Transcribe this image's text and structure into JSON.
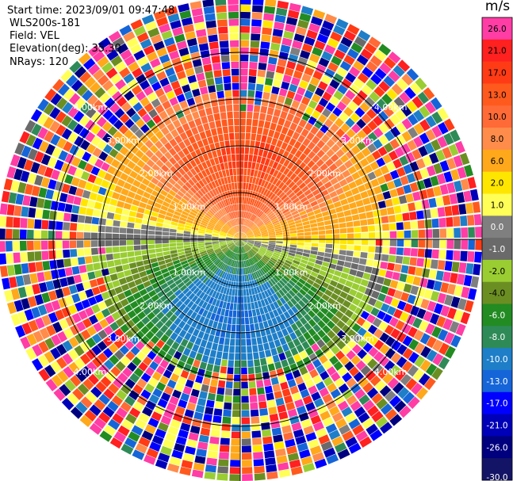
{
  "header": {
    "start_time": "Start time: 2023/09/01 09:47:48",
    "site": "WLS200s-181",
    "field": "Field: VEL",
    "elevation": "Elevation(deg): 35.30",
    "nrays": "NRays: 120"
  },
  "chart_data": {
    "type": "heatmap",
    "subtype": "ppi-radar-sector-plot",
    "field": "VEL",
    "elevation_deg": 35.3,
    "nrays": 120,
    "range_rings_km": [
      1,
      2,
      3,
      4
    ],
    "ring_labels": [
      "1.00km",
      "2.00km",
      "3.00km",
      "4.00km"
    ],
    "ring_label_positions": [
      "top-left",
      "top-right",
      "bottom-left",
      "bottom-right"
    ],
    "colorbar": {
      "unit": "m/s",
      "tick_labels": [
        "26.0",
        "21.0",
        "17.0",
        "13.0",
        "10.0",
        "8.0",
        "6.0",
        "2.0",
        "1.0",
        "0.0",
        "-1.0",
        "-2.0",
        "-4.0",
        "-6.0",
        "-8.0",
        "-10.0",
        "-13.0",
        "-17.0",
        "-21.0",
        "-26.0",
        "-30.0"
      ],
      "colors": [
        "#ff3da5",
        "#ff2020",
        "#ff3b15",
        "#ff5a1e",
        "#ff6a36",
        "#ff8c4a",
        "#ffa81b",
        "#ffe600",
        "#ffff57",
        "#7f7f7f",
        "#6a6a6a",
        "#9acd32",
        "#6b8e23",
        "#228b22",
        "#2e8b57",
        "#1e7ec8",
        "#1565d8",
        "#0000ff",
        "#0000b8",
        "#00007f",
        "#141466"
      ]
    },
    "inner_pattern": "Radial velocity dipole: receding (orange/red, up to about 13 m/s) to the north, approaching (green/blue, down to about -13 m/s) to the south, zero line roughly east-west; beyond about 3 km range the gates are noise with random colours."
  }
}
